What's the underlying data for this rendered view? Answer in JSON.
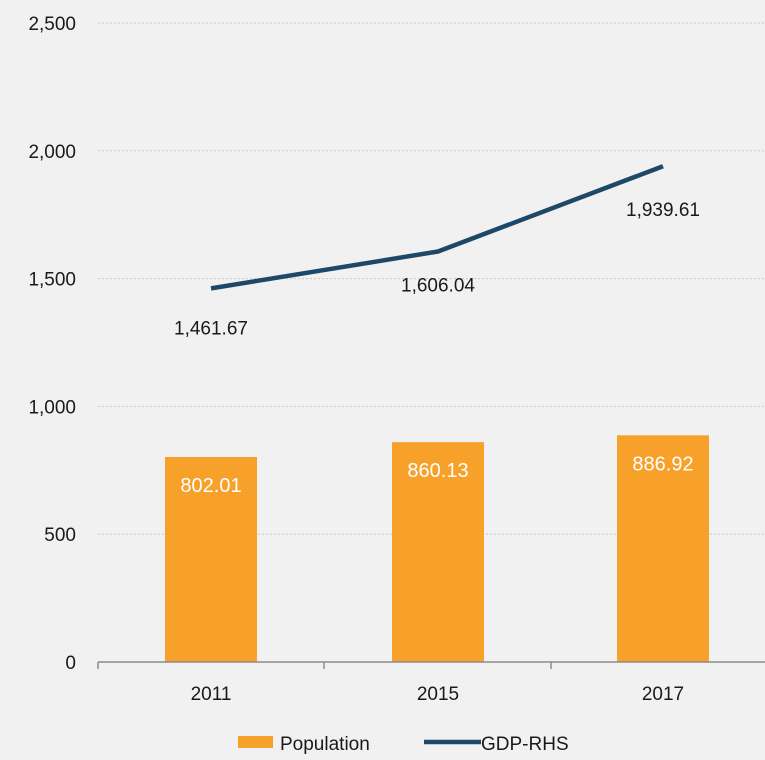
{
  "chart_data": {
    "type": "bar",
    "categories": [
      "2011",
      "2015",
      "2017"
    ],
    "series": [
      {
        "name": "Population",
        "kind": "bar",
        "values": [
          802.01,
          860.13,
          886.92
        ],
        "value_labels": [
          "802.01",
          "860.13",
          "886.92"
        ],
        "color": "#f7a12b"
      },
      {
        "name": "GDP-RHS",
        "kind": "line",
        "values": [
          1461.67,
          1606.04,
          1939.61
        ],
        "value_labels": [
          "1,461.67",
          "1,606.04",
          "1,939.61"
        ],
        "color": "#1e4868"
      }
    ],
    "y_ticks": [
      "0",
      "500",
      "1,000",
      "1,500",
      "2,000",
      "2,500"
    ],
    "ylim": [
      0,
      2500
    ],
    "grid": true,
    "legend_position": "bottom",
    "title": "",
    "xlabel": "",
    "ylabel": "",
    "colors": {
      "background": "#f1f1f2",
      "grid": "#c8c8c8",
      "axis": "#8c8c8c",
      "text": "#1a1a1a",
      "bar_label": "#ffffff"
    }
  }
}
